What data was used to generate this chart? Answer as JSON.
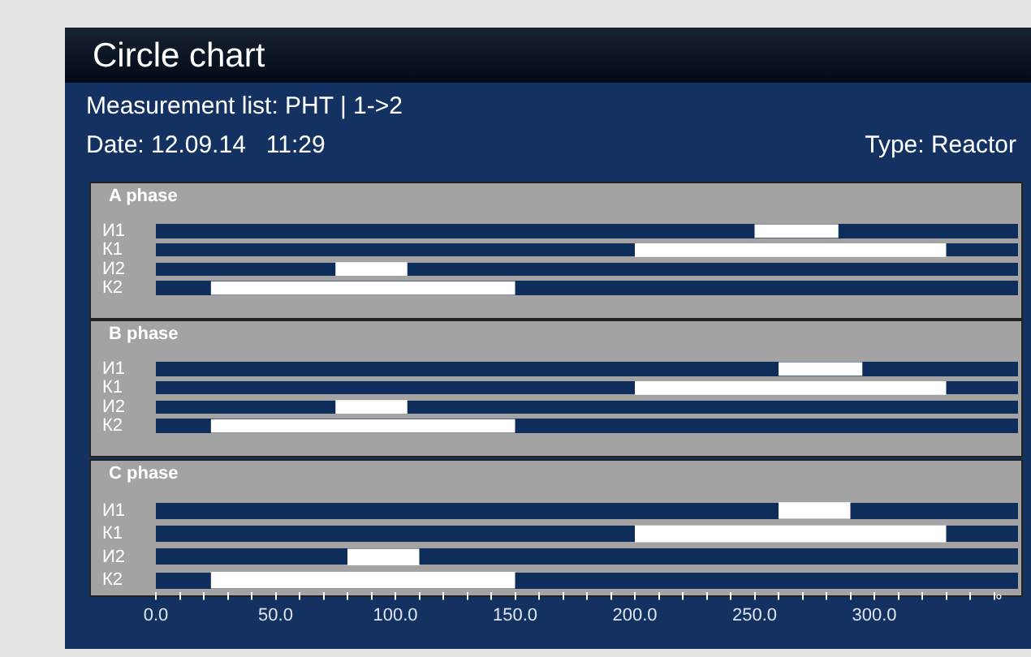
{
  "chart_data": [
    {
      "type": "other",
      "title": "Circle chart",
      "subtitle": "Measurement list: PHT | 1->2",
      "annotations": [
        "Date: 12.09.14   11:29",
        "Type: Reactor"
      ]
    },
    {
      "type": "bar",
      "title": "A phase",
      "orientation": "horizontal",
      "categories": [
        "И1",
        "К1",
        "И2",
        "К2"
      ],
      "base": [
        250,
        200,
        75,
        23
      ],
      "values": [
        35,
        130,
        30,
        127
      ],
      "color": "#ffffff",
      "xlim": [
        0,
        360
      ],
      "tick_labels": "y"
    },
    {
      "type": "bar",
      "title": "B phase",
      "orientation": "horizontal",
      "categories": [
        "И1",
        "К1",
        "И2",
        "К2"
      ],
      "base": [
        260,
        200,
        75,
        23
      ],
      "values": [
        35,
        130,
        30,
        127
      ],
      "color": "#ffffff",
      "xlim": [
        0,
        360
      ],
      "tick_labels": "y"
    },
    {
      "type": "bar",
      "title": "C phase",
      "orientation": "horizontal",
      "categories": [
        "И1",
        "К1",
        "И2",
        "К2"
      ],
      "base": [
        260,
        200,
        80,
        23
      ],
      "values": [
        30,
        130,
        30,
        127
      ],
      "color": "#ffffff",
      "xlim": [
        0,
        360
      ],
      "xlabel": "°",
      "xticks": [
        {
          "value": 0,
          "label": "0.0"
        },
        {
          "value": 10,
          "label": null
        },
        {
          "value": 20,
          "label": null
        },
        {
          "value": 30,
          "label": null
        },
        {
          "value": 40,
          "label": null
        },
        {
          "value": 50,
          "label": "50.0"
        },
        {
          "value": 60,
          "label": null
        },
        {
          "value": 70,
          "label": null
        },
        {
          "value": 80,
          "label": null
        },
        {
          "value": 90,
          "label": null
        },
        {
          "value": 100,
          "label": "100.0"
        },
        {
          "value": 110,
          "label": null
        },
        {
          "value": 120,
          "label": null
        },
        {
          "value": 130,
          "label": null
        },
        {
          "value": 140,
          "label": null
        },
        {
          "value": 150,
          "label": "150.0"
        },
        {
          "value": 160,
          "label": null
        },
        {
          "value": 170,
          "label": null
        },
        {
          "value": 180,
          "label": null
        },
        {
          "value": 190,
          "label": null
        },
        {
          "value": 200,
          "label": "200.0"
        },
        {
          "value": 210,
          "label": null
        },
        {
          "value": 220,
          "label": null
        },
        {
          "value": 230,
          "label": null
        },
        {
          "value": 240,
          "label": null
        },
        {
          "value": 250,
          "label": "250.0"
        },
        {
          "value": 260,
          "label": null
        },
        {
          "value": 270,
          "label": null
        },
        {
          "value": 280,
          "label": null
        },
        {
          "value": 290,
          "label": null
        },
        {
          "value": 300,
          "label": "300.0"
        },
        {
          "value": 310,
          "label": null
        },
        {
          "value": 320,
          "label": null
        },
        {
          "value": 330,
          "label": null
        },
        {
          "value": 340,
          "label": null
        },
        {
          "value": 350,
          "label": null
        }
      ]
    }
  ]
}
